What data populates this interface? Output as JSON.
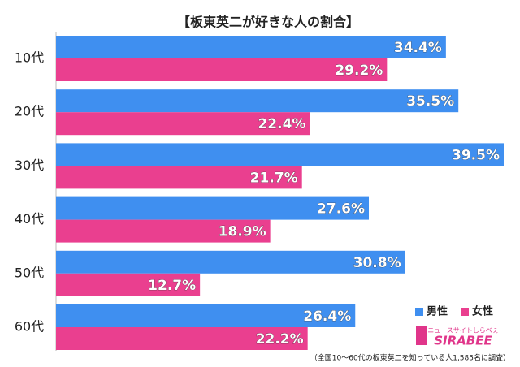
{
  "chart_data": {
    "type": "hbar",
    "title": "【板東英二が好きな人の割合】",
    "categories": [
      "10代",
      "20代",
      "30代",
      "40代",
      "50代",
      "60代"
    ],
    "series": [
      {
        "name": "男性",
        "color": "#3f8ff0",
        "values": [
          34.4,
          35.5,
          39.5,
          27.6,
          30.8,
          26.4
        ],
        "value_labels": [
          "34.4%",
          "35.5%",
          "39.5%",
          "27.6%",
          "30.8%",
          "26.4%"
        ]
      },
      {
        "name": "女性",
        "color": "#ea3f8f",
        "values": [
          29.2,
          22.4,
          21.7,
          18.9,
          12.7,
          22.2
        ],
        "value_labels": [
          "29.2%",
          "22.4%",
          "21.7%",
          "18.9%",
          "12.7%",
          "22.2%"
        ]
      }
    ],
    "legend": "lower right"
  },
  "logo": {
    "tagline": "ニュースサイトしらべぇ",
    "name": "SIRABEE"
  },
  "footnote": "（全国10〜60代の板東英二を知っている人1,585名に調査）"
}
